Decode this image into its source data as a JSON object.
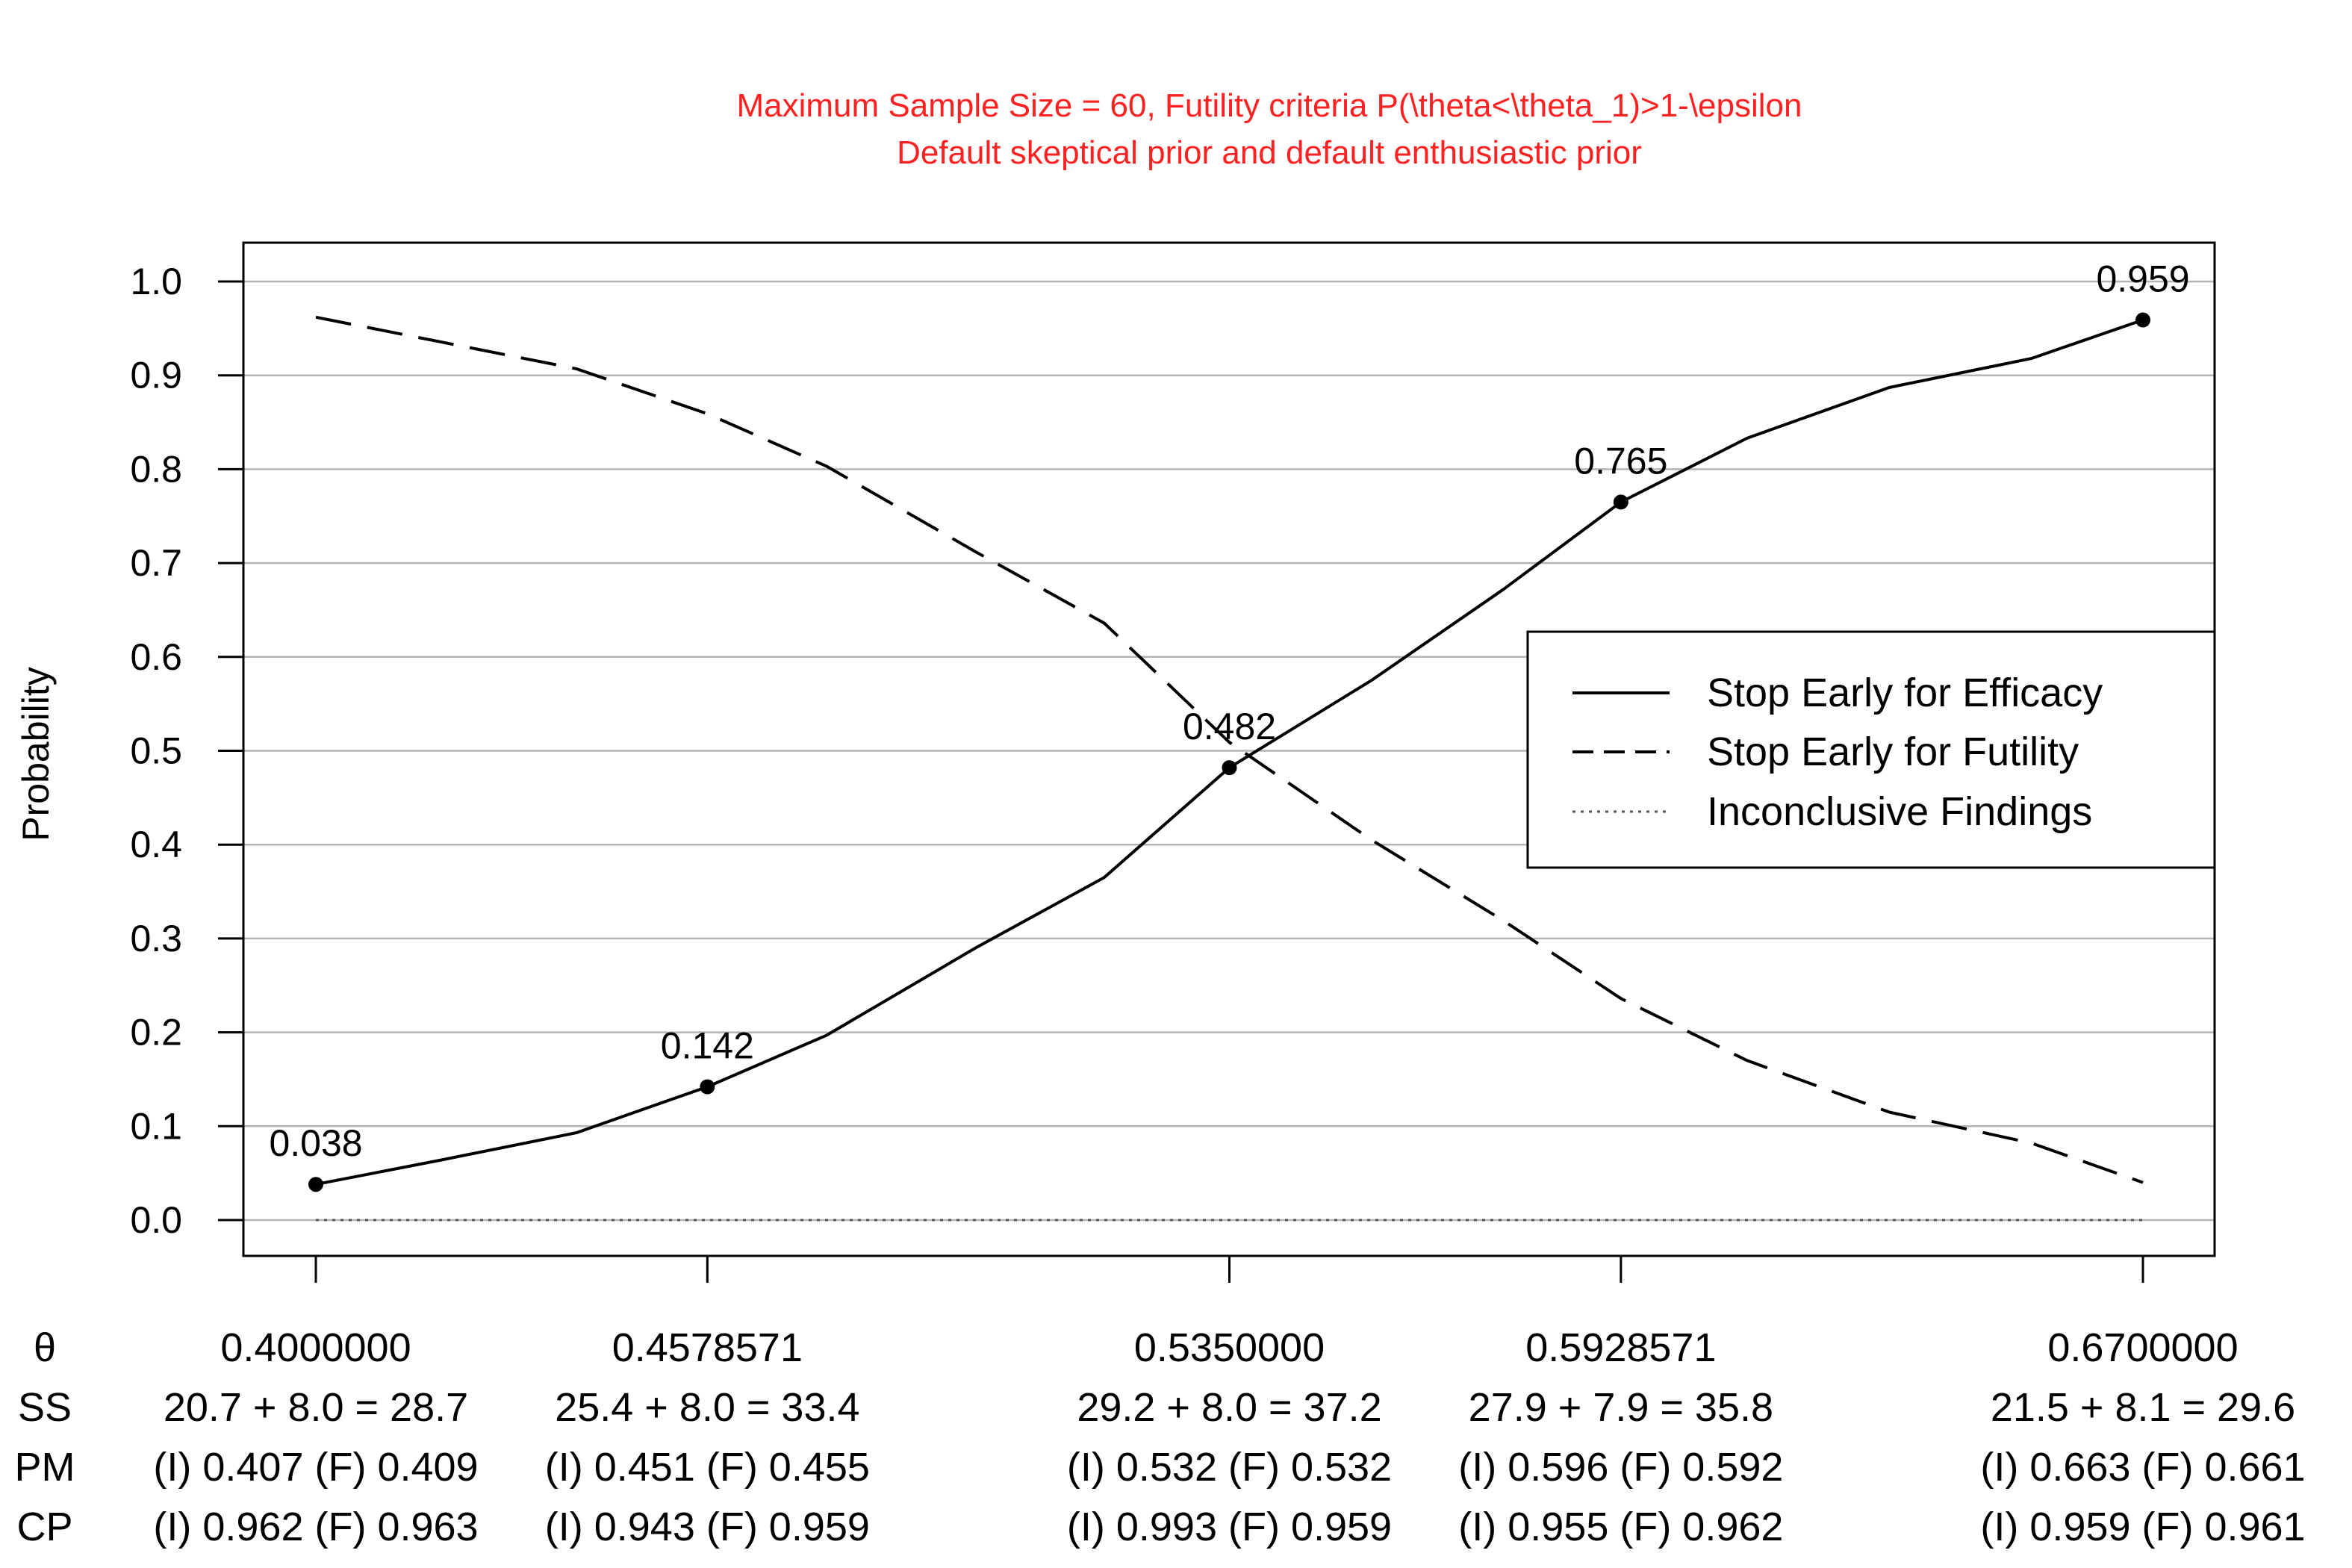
{
  "chart_data": {
    "type": "line",
    "title": "Maximum Sample Size = 60, Futility criteria P(\\theta<\\theta_1)>1-\\epsilon",
    "subtitle": "Default skeptical prior and default enthusiastic prior",
    "title_color": "#ff2020",
    "ylabel": "Probability",
    "ylim": [
      0,
      1
    ],
    "xlim": [
      0.4,
      0.67
    ],
    "yticks": [
      "0.0",
      "0.1",
      "0.2",
      "0.3",
      "0.4",
      "0.5",
      "0.6",
      "0.7",
      "0.8",
      "0.9",
      "1.0"
    ],
    "grid": "horizontal",
    "legend_position": "right",
    "series": [
      {
        "name": "Stop Early for Efficacy",
        "style": "solid",
        "x": [
          0.4,
          0.4185,
          0.4385,
          0.4578571,
          0.4755,
          0.4975,
          0.5165,
          0.535,
          0.556,
          0.5755,
          0.5928571,
          0.6115,
          0.6325,
          0.6535,
          0.67
        ],
        "y": [
          0.038,
          0.064,
          0.093,
          0.142,
          0.197,
          0.29,
          0.365,
          0.482,
          0.575,
          0.672,
          0.765,
          0.833,
          0.887,
          0.918,
          0.959
        ]
      },
      {
        "name": "Stop Early for Futility",
        "style": "dashed",
        "x": [
          0.4,
          0.4175,
          0.4385,
          0.4578571,
          0.4755,
          0.4975,
          0.5165,
          0.535,
          0.556,
          0.5755,
          0.5928571,
          0.6115,
          0.6325,
          0.6535,
          0.67
        ],
        "y": [
          0.962,
          0.937,
          0.907,
          0.859,
          0.803,
          0.712,
          0.636,
          0.509,
          0.405,
          0.319,
          0.236,
          0.17,
          0.115,
          0.082,
          0.04
        ]
      },
      {
        "name": "Inconclusive Findings",
        "style": "dotted",
        "x": [
          0.4,
          0.67
        ],
        "y": [
          0.0,
          0.0
        ]
      }
    ],
    "points": [
      {
        "x": 0.4,
        "y": 0.038,
        "label": "0.038"
      },
      {
        "x": 0.4578571,
        "y": 0.142,
        "label": "0.142"
      },
      {
        "x": 0.535,
        "y": 0.482,
        "label": "0.482"
      },
      {
        "x": 0.5928571,
        "y": 0.765,
        "label": "0.765"
      },
      {
        "x": 0.67,
        "y": 0.959,
        "label": "0.959"
      }
    ],
    "bottom_table": {
      "row_labels": [
        "θ",
        "SS",
        "PM",
        "CP"
      ],
      "columns": [
        {
          "x": 0.4,
          "values": [
            "0.4000000",
            "20.7 + 8.0 = 28.7",
            "(I) 0.407 (F) 0.409",
            "(I) 0.962 (F) 0.963"
          ]
        },
        {
          "x": 0.4578571,
          "values": [
            "0.4578571",
            "25.4 + 8.0 = 33.4",
            "(I) 0.451 (F) 0.455",
            "(I) 0.943 (F) 0.959"
          ]
        },
        {
          "x": 0.535,
          "values": [
            "0.5350000",
            "29.2 + 8.0 = 37.2",
            "(I) 0.532 (F) 0.532",
            "(I) 0.993 (F) 0.959"
          ]
        },
        {
          "x": 0.5928571,
          "values": [
            "0.5928571",
            "27.9 + 7.9 = 35.8",
            "(I) 0.596 (F) 0.592",
            "(I) 0.955 (F) 0.962"
          ]
        },
        {
          "x": 0.67,
          "values": [
            "0.6700000",
            "21.5 + 8.1 = 29.6",
            "(I) 0.663 (F) 0.661",
            "(I) 0.959 (F) 0.961"
          ]
        }
      ]
    }
  }
}
